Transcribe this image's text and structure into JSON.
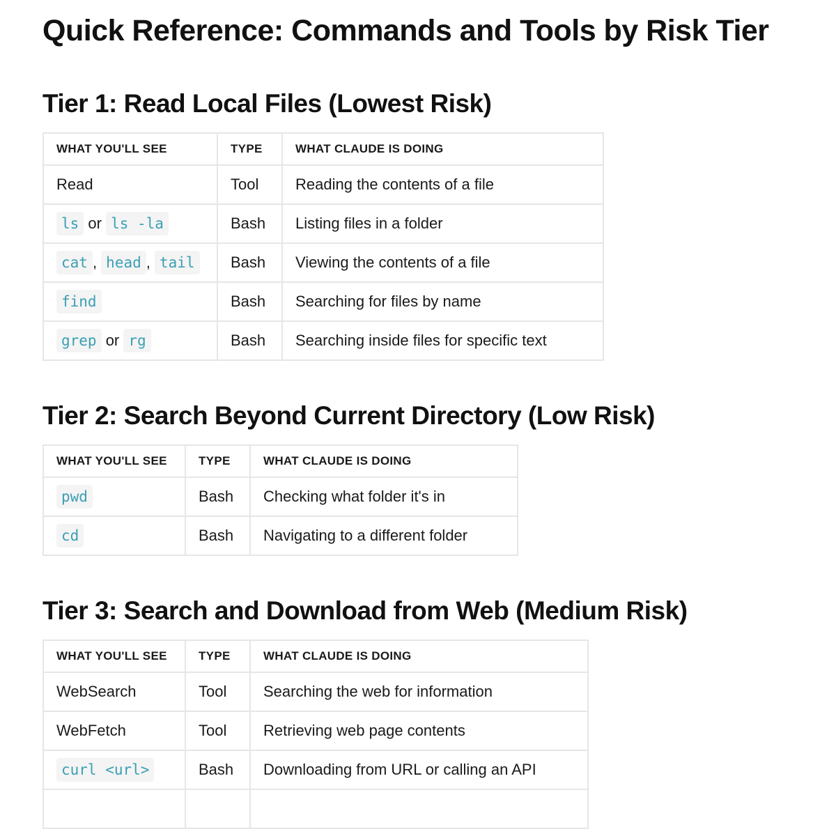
{
  "title": "Quick Reference: Commands and Tools by Risk Tier",
  "headers": [
    "WHAT YOU'LL SEE",
    "TYPE",
    "WHAT CLAUDE IS DOING"
  ],
  "tiers": [
    {
      "heading": "Tier 1: Read Local Files (Lowest Risk)",
      "widths": [
        250,
        93,
        461
      ],
      "rows": [
        {
          "see": [
            {
              "t": "Read"
            }
          ],
          "type": "Tool",
          "doing": "Reading the contents of a file"
        },
        {
          "see": [
            {
              "c": "ls"
            },
            {
              "t": " or "
            },
            {
              "c": "ls -la"
            }
          ],
          "type": "Bash",
          "doing": "Listing files in a folder"
        },
        {
          "see": [
            {
              "c": "cat"
            },
            {
              "t": ", "
            },
            {
              "c": "head"
            },
            {
              "t": ", "
            },
            {
              "c": "tail"
            }
          ],
          "type": "Bash",
          "doing": "Viewing the contents of a file"
        },
        {
          "see": [
            {
              "c": "find"
            }
          ],
          "type": "Bash",
          "doing": "Searching for files by name"
        },
        {
          "see": [
            {
              "c": "grep"
            },
            {
              "t": " or "
            },
            {
              "c": "rg"
            }
          ],
          "type": "Bash",
          "doing": "Searching inside files for specific text"
        }
      ]
    },
    {
      "heading": "Tier 2: Search Beyond Current Directory (Low Risk)",
      "widths": [
        204,
        93,
        384
      ],
      "rows": [
        {
          "see": [
            {
              "c": "pwd"
            }
          ],
          "type": "Bash",
          "doing": "Checking what folder it's in"
        },
        {
          "see": [
            {
              "c": "cd"
            }
          ],
          "type": "Bash",
          "doing": "Navigating to a different folder"
        }
      ]
    },
    {
      "heading": "Tier 3: Search and Download from Web (Medium Risk)",
      "widths": [
        204,
        93,
        485
      ],
      "rows": [
        {
          "see": [
            {
              "t": "WebSearch"
            }
          ],
          "type": "Tool",
          "doing": "Searching the web for information"
        },
        {
          "see": [
            {
              "t": "WebFetch"
            }
          ],
          "type": "Tool",
          "doing": "Retrieving web page contents"
        },
        {
          "see": [
            {
              "c": "curl <url>"
            }
          ],
          "type": "Bash",
          "doing": "Downloading from URL or calling an API"
        }
      ]
    }
  ]
}
